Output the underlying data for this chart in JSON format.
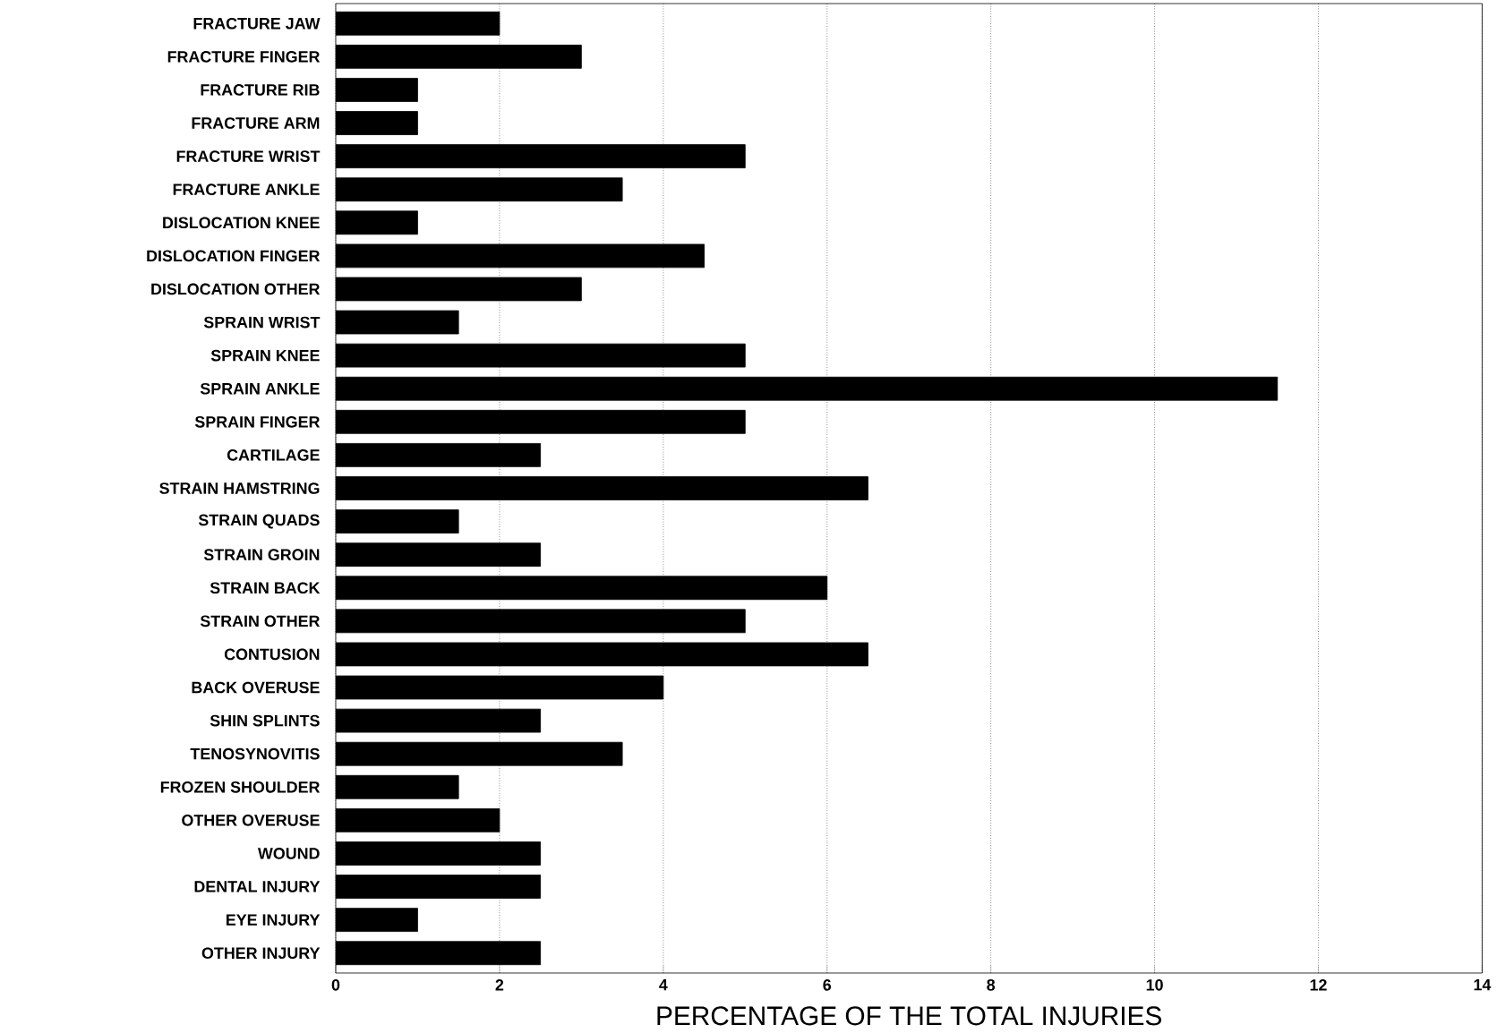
{
  "chart_data": {
    "type": "bar",
    "orientation": "horizontal",
    "xlabel": "PERCENTAGE OF THE TOTAL INJURIES",
    "categories": [
      "FRACTURE JAW",
      "FRACTURE FINGER",
      "FRACTURE RIB",
      "FRACTURE ARM",
      "FRACTURE WRIST",
      "FRACTURE ANKLE",
      "DISLOCATION KNEE",
      "DISLOCATION FINGER",
      "DISLOCATION OTHER",
      "SPRAIN WRIST",
      "SPRAIN KNEE",
      "SPRAIN ANKLE",
      "SPRAIN FINGER",
      "CARTILAGE",
      "STRAIN HAMSTRING",
      "STRAIN QUADS",
      "STRAIN GROIN",
      "STRAIN BACK",
      "STRAIN OTHER",
      "CONTUSION",
      "BACK OVERUSE",
      "SHIN SPLINTS",
      "TENOSYNOVITIS",
      "FROZEN SHOULDER",
      "OTHER OVERUSE",
      "WOUND",
      "DENTAL INJURY",
      "EYE INJURY",
      "OTHER INJURY"
    ],
    "values": [
      2,
      3,
      1,
      1,
      5,
      3.5,
      1,
      4.5,
      3,
      1.5,
      5,
      11.5,
      5,
      2.5,
      6.5,
      1.5,
      2.5,
      6,
      5,
      6.5,
      4,
      2.5,
      3.5,
      1.5,
      2,
      2.5,
      2.5,
      1,
      2.5
    ],
    "color": "#000000",
    "xlim": [
      0,
      14
    ],
    "xticks": [
      0,
      2,
      4,
      6,
      8,
      10,
      12,
      14
    ],
    "grid": "x"
  }
}
